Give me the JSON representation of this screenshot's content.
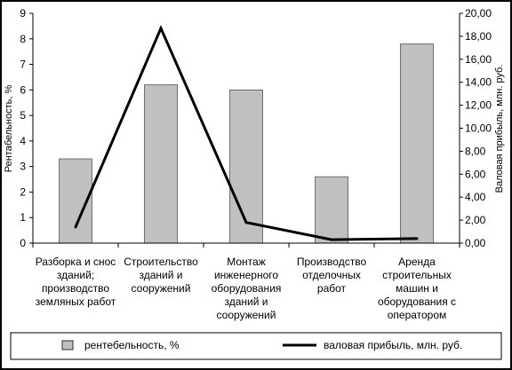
{
  "chart_data": {
    "type": "bar",
    "categories": [
      [
        "Разборка и снос",
        "зданий;",
        "производство",
        "земляных работ"
      ],
      [
        "Строительство",
        "зданий и",
        "сооружений"
      ],
      [
        "Монтаж",
        "инженерного",
        "оборудования",
        "зданий и",
        "сооружений"
      ],
      [
        "Производство",
        "отделочных",
        "работ"
      ],
      [
        "Аренда",
        "строительных",
        "машин и",
        "оборудования с",
        "оператором"
      ]
    ],
    "series": [
      {
        "name": "рентебельность, %",
        "type": "bar",
        "axis": "left",
        "values": [
          3.3,
          6.2,
          6.0,
          2.6,
          7.8
        ],
        "color": "#c0c0c0"
      },
      {
        "name": "валовая прибыль, млн. руб.",
        "type": "line",
        "axis": "right",
        "values": [
          1.4,
          18.7,
          1.8,
          0.3,
          0.4
        ],
        "color": "#000000"
      }
    ],
    "ylabel": "Рентабельность, %",
    "y2label": "Валовая прибыль, млн. руб.",
    "ylim": [
      0,
      9
    ],
    "y2lim": [
      0,
      20
    ],
    "yticks": [
      "0",
      "1",
      "2",
      "3",
      "4",
      "5",
      "6",
      "7",
      "8",
      "9"
    ],
    "y2ticks": [
      "0,00",
      "2,00",
      "4,00",
      "6,00",
      "8,00",
      "10,00",
      "12,00",
      "14,00",
      "16,00",
      "18,00",
      "20,00"
    ],
    "grid": false,
    "legend_position": "bottom"
  }
}
